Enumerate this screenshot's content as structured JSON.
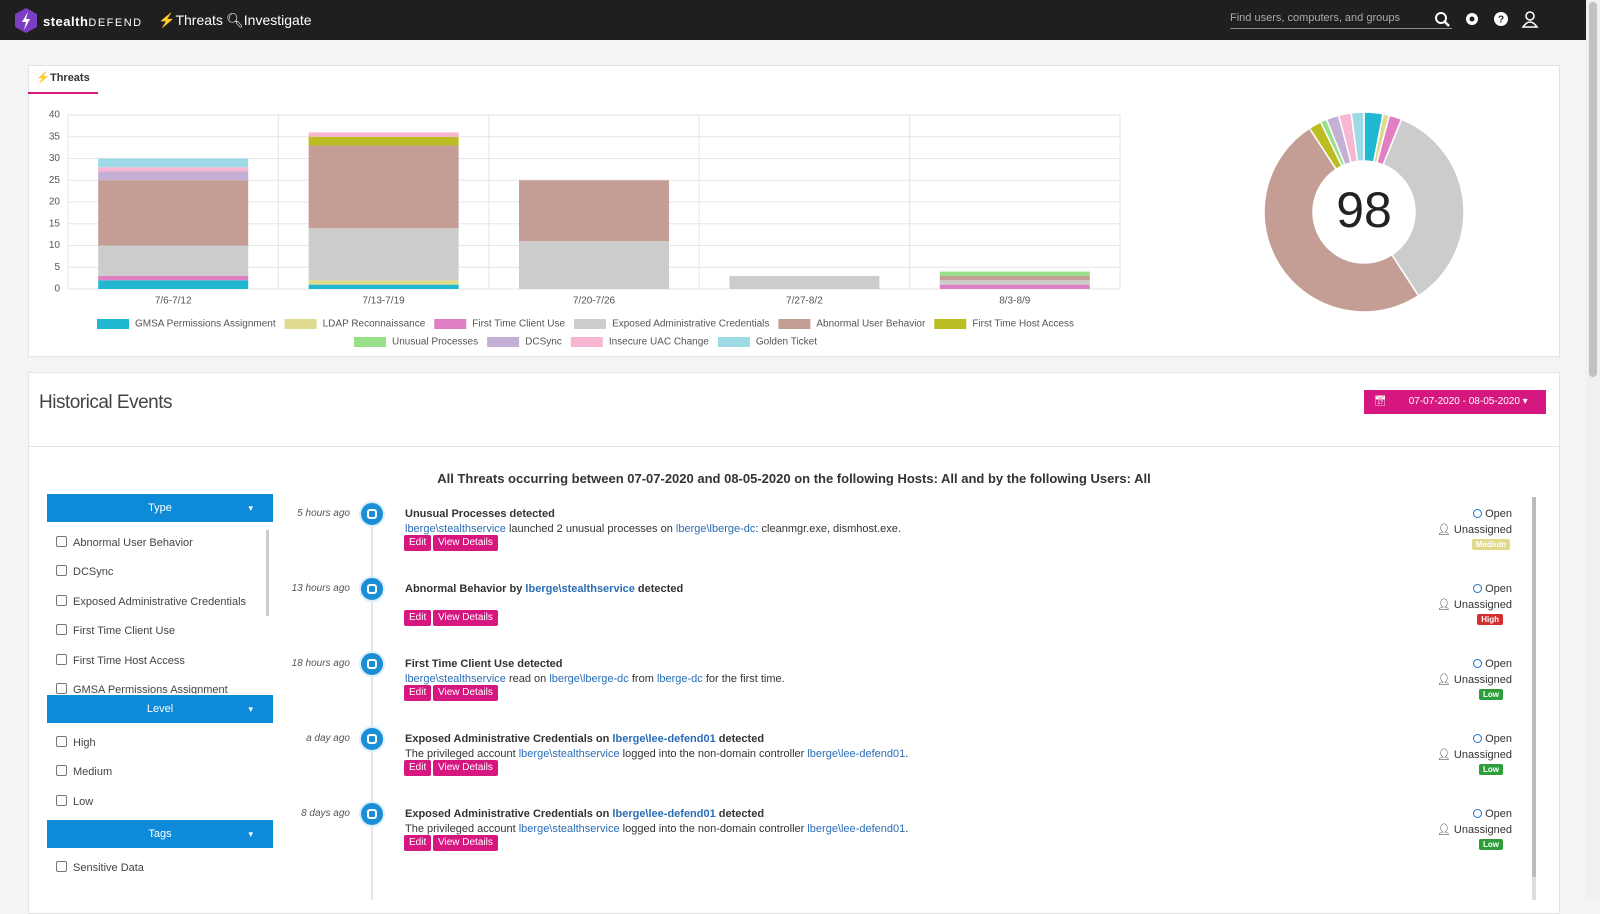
{
  "nav": {
    "brand": "stealth",
    "brand_suffix": "DEFEND",
    "links": [
      "Threats",
      "Investigate"
    ],
    "search_placeholder": "Find users, computers, and groups"
  },
  "threats_tab": "Threats",
  "chart_data": [
    {
      "type": "bar",
      "stacked": true,
      "grid": true,
      "legend": "bottom",
      "categories": [
        "7/6-7/12",
        "7/13-7/19",
        "7/20-7/26",
        "7/27-8/2",
        "8/3-8/9"
      ],
      "ylim": [
        0,
        40
      ],
      "yticks": [
        0,
        5,
        10,
        15,
        20,
        25,
        30,
        35,
        40
      ],
      "series": [
        {
          "name": "GMSA Permissions Assignment",
          "color": "#1fb8d0",
          "values": [
            2,
            1,
            0,
            0,
            0
          ]
        },
        {
          "name": "LDAP Reconnaissance",
          "color": "#dedb8e",
          "values": [
            0,
            1,
            0,
            0,
            0
          ]
        },
        {
          "name": "First Time Client Use",
          "color": "#e07fc4",
          "values": [
            1,
            0,
            0,
            0,
            1
          ]
        },
        {
          "name": "Exposed Administrative Credentials",
          "color": "#cccccc",
          "values": [
            7,
            12,
            11,
            3,
            1
          ]
        },
        {
          "name": "Abnormal User Behavior",
          "color": "#c49d94",
          "values": [
            15,
            19,
            14,
            0,
            1
          ]
        },
        {
          "name": "First Time Host Access",
          "color": "#bcbd22",
          "values": [
            0,
            2,
            0,
            0,
            0
          ]
        },
        {
          "name": "Unusual Processes",
          "color": "#98df8a",
          "values": [
            0,
            0,
            0,
            0,
            1
          ]
        },
        {
          "name": "DCSync",
          "color": "#c5b0d5",
          "values": [
            2,
            0,
            0,
            0,
            0
          ]
        },
        {
          "name": "Insecure UAC Change",
          "color": "#f7b6d2",
          "values": [
            1,
            1,
            0,
            0,
            0
          ]
        },
        {
          "name": "Golden Ticket",
          "color": "#9edae5",
          "values": [
            2,
            0,
            0,
            0,
            0
          ]
        }
      ]
    },
    {
      "type": "pie",
      "donut": true,
      "center_label": 98,
      "values": [
        3,
        1,
        2,
        34,
        49,
        2,
        1,
        2,
        2,
        2
      ],
      "colors": [
        "#1fb8d0",
        "#dedb8e",
        "#e07fc4",
        "#cccccc",
        "#c49d94",
        "#bcbd22",
        "#98df8a",
        "#c5b0d5",
        "#f7b6d2",
        "#9edae5"
      ]
    }
  ],
  "historical": {
    "title": "Historical Events",
    "date_range": "07-07-2020 - 08-05-2020",
    "summary": "All Threats occurring between 07-07-2020 and 08-05-2020 on the following Hosts: All and by the following Users: All"
  },
  "filters": [
    {
      "title": "Type",
      "options": [
        "Abnormal User Behavior",
        "DCSync",
        "Exposed Administrative Credentials",
        "First Time Client Use",
        "First Time Host Access",
        "GMSA Permissions Assignment"
      ]
    },
    {
      "title": "Level",
      "options": [
        "High",
        "Medium",
        "Low"
      ]
    },
    {
      "title": "Tags",
      "options": [
        "Sensitive Data"
      ]
    }
  ],
  "buttons": {
    "edit": "Edit",
    "view": "View Details"
  },
  "events": [
    {
      "time": "5 hours ago",
      "title": [
        {
          "t": "Unusual Processes detected"
        }
      ],
      "desc": [
        {
          "t": "lberge\\stealthservice",
          "link": true
        },
        {
          "t": " launched 2 unusual processes on "
        },
        {
          "t": "lberge\\lberge-dc",
          "link": true
        },
        {
          "t": ": cleanmgr.exe, dismhost.exe."
        }
      ],
      "status": "Open",
      "assignee": "Unassigned",
      "level": "Medium"
    },
    {
      "time": "13 hours ago",
      "title": [
        {
          "t": "Abnormal Behavior by "
        },
        {
          "t": "lberge\\stealthservice",
          "link": true
        },
        {
          "t": " detected"
        }
      ],
      "desc": [],
      "status": "Open",
      "assignee": "Unassigned",
      "level": "High"
    },
    {
      "time": "18 hours ago",
      "title": [
        {
          "t": "First Time Client Use detected"
        }
      ],
      "desc": [
        {
          "t": "lberge\\stealthservice",
          "link": true
        },
        {
          "t": " read on "
        },
        {
          "t": "lberge\\lberge-dc",
          "link": true
        },
        {
          "t": " from "
        },
        {
          "t": "lberge-dc",
          "link": true
        },
        {
          "t": " for the first time."
        }
      ],
      "status": "Open",
      "assignee": "Unassigned",
      "level": "Low"
    },
    {
      "time": "a day ago",
      "title": [
        {
          "t": "Exposed Administrative Credentials on "
        },
        {
          "t": "lberge\\lee-defend01",
          "link": true
        },
        {
          "t": " detected"
        }
      ],
      "desc": [
        {
          "t": "The privileged account "
        },
        {
          "t": "lberge\\stealthservice",
          "link": true
        },
        {
          "t": " logged into the non-domain controller "
        },
        {
          "t": "lberge\\lee-defend01",
          "link": true
        },
        {
          "t": "."
        }
      ],
      "status": "Open",
      "assignee": "Unassigned",
      "level": "Low"
    },
    {
      "time": "8 days ago",
      "title": [
        {
          "t": "Exposed Administrative Credentials on "
        },
        {
          "t": "lberge\\lee-defend01",
          "link": true
        },
        {
          "t": " detected"
        }
      ],
      "desc": [
        {
          "t": "The privileged account "
        },
        {
          "t": "lberge\\stealthservice",
          "link": true
        },
        {
          "t": " logged into the non-domain controller "
        },
        {
          "t": "lberge\\lee-defend01",
          "link": true
        },
        {
          "t": "."
        }
      ],
      "status": "Open",
      "assignee": "Unassigned",
      "level": "Low"
    }
  ]
}
